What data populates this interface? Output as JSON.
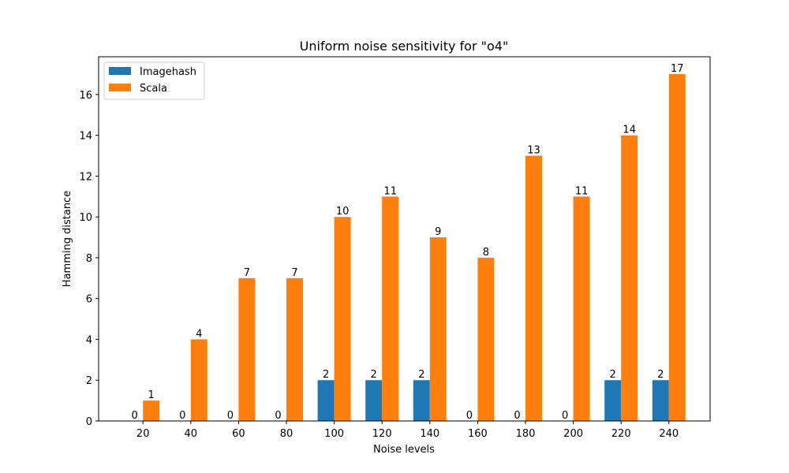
{
  "chart_data": {
    "type": "bar",
    "title": "Uniform noise sensitivity for \"o4\"",
    "xlabel": "Noise levels",
    "ylabel": "Hamming distance",
    "categories": [
      "20",
      "40",
      "60",
      "80",
      "100",
      "120",
      "140",
      "160",
      "180",
      "200",
      "220",
      "240"
    ],
    "series": [
      {
        "name": "Imagehash",
        "color": "#1f77b4",
        "values": [
          0,
          0,
          0,
          0,
          2,
          2,
          2,
          0,
          0,
          0,
          2,
          2
        ]
      },
      {
        "name": "Scala",
        "color": "#ff7f0e",
        "values": [
          1,
          4,
          7,
          7,
          10,
          11,
          9,
          8,
          13,
          11,
          14,
          17
        ]
      }
    ],
    "ylim": [
      0,
      17.85
    ],
    "yticks": [
      0,
      2,
      4,
      6,
      8,
      10,
      12,
      14,
      16
    ],
    "legend": "top-left",
    "grid": false
  }
}
